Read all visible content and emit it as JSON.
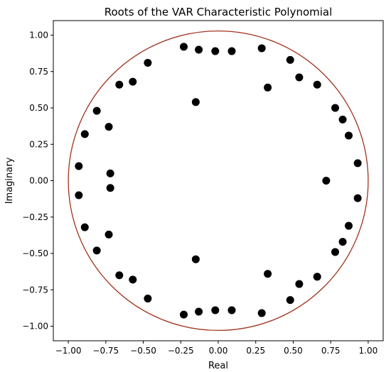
{
  "chart_data": {
    "type": "scatter",
    "title": "Roots of the VAR Characteristic Polynomial",
    "xlabel": "Real",
    "ylabel": "Imaginary",
    "xlim": [
      -1.1,
      1.1
    ],
    "ylim": [
      -1.1,
      1.1
    ],
    "xticks": [
      -1.0,
      -0.75,
      -0.5,
      -0.25,
      0.0,
      0.25,
      0.5,
      0.75,
      1.0
    ],
    "yticks": [
      -1.0,
      -0.75,
      -0.5,
      -0.25,
      0.0,
      0.25,
      0.5,
      0.75,
      1.0
    ],
    "xtick_labels": [
      "−1.00",
      "−0.75",
      "−0.50",
      "−0.25",
      "0.00",
      "0.25",
      "0.50",
      "0.75",
      "1.00"
    ],
    "ytick_labels": [
      "−1.00",
      "−0.75",
      "−0.50",
      "−0.25",
      "0.00",
      "0.25",
      "0.50",
      "0.75",
      "1.00"
    ],
    "grid": false,
    "unit_circle": {
      "radius": 1.0,
      "color": "#a0341e"
    },
    "marker_color": "#000000",
    "points": [
      {
        "x": -0.23,
        "y": 0.92
      },
      {
        "x": -0.13,
        "y": 0.9
      },
      {
        "x": -0.02,
        "y": 0.89
      },
      {
        "x": 0.09,
        "y": 0.89
      },
      {
        "x": 0.29,
        "y": 0.91
      },
      {
        "x": 0.48,
        "y": 0.83
      },
      {
        "x": -0.47,
        "y": 0.81
      },
      {
        "x": -0.57,
        "y": 0.68
      },
      {
        "x": -0.66,
        "y": 0.66
      },
      {
        "x": 0.54,
        "y": 0.71
      },
      {
        "x": 0.66,
        "y": 0.66
      },
      {
        "x": 0.33,
        "y": 0.64
      },
      {
        "x": -0.15,
        "y": 0.54
      },
      {
        "x": -0.81,
        "y": 0.48
      },
      {
        "x": 0.78,
        "y": 0.5
      },
      {
        "x": 0.83,
        "y": 0.42
      },
      {
        "x": -0.73,
        "y": 0.37
      },
      {
        "x": -0.89,
        "y": 0.32
      },
      {
        "x": 0.87,
        "y": 0.31
      },
      {
        "x": -0.93,
        "y": 0.1
      },
      {
        "x": 0.93,
        "y": 0.12
      },
      {
        "x": -0.72,
        "y": 0.05
      },
      {
        "x": 0.72,
        "y": 0.0
      },
      {
        "x": -0.72,
        "y": -0.05
      },
      {
        "x": -0.93,
        "y": -0.1
      },
      {
        "x": 0.93,
        "y": -0.12
      },
      {
        "x": -0.89,
        "y": -0.32
      },
      {
        "x": 0.87,
        "y": -0.31
      },
      {
        "x": -0.73,
        "y": -0.37
      },
      {
        "x": 0.83,
        "y": -0.42
      },
      {
        "x": -0.81,
        "y": -0.48
      },
      {
        "x": 0.78,
        "y": -0.49
      },
      {
        "x": -0.15,
        "y": -0.54
      },
      {
        "x": 0.33,
        "y": -0.64
      },
      {
        "x": -0.66,
        "y": -0.65
      },
      {
        "x": -0.57,
        "y": -0.68
      },
      {
        "x": 0.66,
        "y": -0.66
      },
      {
        "x": 0.54,
        "y": -0.71
      },
      {
        "x": -0.47,
        "y": -0.81
      },
      {
        "x": 0.48,
        "y": -0.82
      },
      {
        "x": -0.23,
        "y": -0.92
      },
      {
        "x": -0.13,
        "y": -0.9
      },
      {
        "x": -0.02,
        "y": -0.89
      },
      {
        "x": 0.09,
        "y": -0.89
      },
      {
        "x": 0.29,
        "y": -0.91
      }
    ]
  }
}
